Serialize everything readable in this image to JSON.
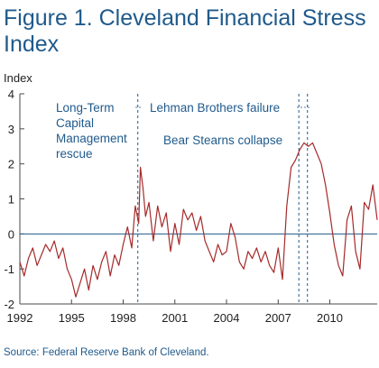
{
  "figure": {
    "title": "Figure 1. Cleveland Financial Stress Index",
    "source": "Source: Federal Reserve Bank of Cleveland."
  },
  "colors": {
    "title": "#1f5a8c",
    "series": "#a52a2a",
    "annotation": "#1f5a8c",
    "zero_line": "#1f5a8c",
    "axis": "#4a4a4a"
  },
  "chart_data": {
    "type": "line",
    "title": "Figure 1. Cleveland Financial Stress Index",
    "ylabel": "Index",
    "xlabel": "",
    "xlim": [
      1992,
      2012.75
    ],
    "ylim": [
      -2,
      4
    ],
    "xticks": [
      1992,
      1995,
      1998,
      2001,
      2004,
      2007,
      2010
    ],
    "yticks": [
      -2,
      -1,
      0,
      1,
      2,
      3,
      4
    ],
    "grid": false,
    "series": [
      {
        "name": "",
        "x": [
          1992.0,
          1992.25,
          1992.5,
          1992.75,
          1993.0,
          1993.25,
          1993.5,
          1993.75,
          1994.0,
          1994.25,
          1994.5,
          1994.75,
          1995.0,
          1995.25,
          1995.5,
          1995.75,
          1996.0,
          1996.25,
          1996.5,
          1996.75,
          1997.0,
          1997.25,
          1997.5,
          1997.75,
          1998.0,
          1998.25,
          1998.5,
          1998.7,
          1998.9,
          1999.0,
          1999.15,
          1999.3,
          1999.5,
          1999.75,
          2000.0,
          2000.25,
          2000.5,
          2000.75,
          2001.0,
          2001.25,
          2001.5,
          2001.75,
          2002.0,
          2002.25,
          2002.5,
          2002.75,
          2003.0,
          2003.25,
          2003.5,
          2003.75,
          2004.0,
          2004.25,
          2004.5,
          2004.75,
          2005.0,
          2005.25,
          2005.5,
          2005.75,
          2006.0,
          2006.25,
          2006.5,
          2006.75,
          2007.0,
          2007.25,
          2007.5,
          2007.75,
          2008.0,
          2008.25,
          2008.5,
          2008.75,
          2009.0,
          2009.25,
          2009.5,
          2009.75,
          2010.0,
          2010.25,
          2010.5,
          2010.75,
          2011.0,
          2011.25,
          2011.5,
          2011.75,
          2012.0,
          2012.25,
          2012.5,
          2012.75
        ],
        "values": [
          -0.8,
          -1.2,
          -0.7,
          -0.4,
          -0.9,
          -0.6,
          -0.3,
          -0.5,
          -0.2,
          -0.7,
          -0.4,
          -1.0,
          -1.3,
          -1.8,
          -1.4,
          -1.0,
          -1.6,
          -0.9,
          -1.3,
          -0.8,
          -0.5,
          -1.2,
          -0.6,
          -0.9,
          -0.3,
          0.2,
          -0.4,
          0.8,
          0.3,
          1.9,
          1.3,
          0.5,
          0.9,
          -0.2,
          0.8,
          0.2,
          0.6,
          -0.5,
          0.3,
          -0.3,
          0.7,
          0.4,
          0.6,
          0.1,
          0.5,
          -0.2,
          -0.5,
          -0.8,
          -0.3,
          -0.6,
          -0.5,
          0.3,
          -0.1,
          -0.8,
          -1.0,
          -0.5,
          -0.7,
          -0.4,
          -0.8,
          -0.5,
          -0.9,
          -1.1,
          -0.4,
          -1.3,
          0.8,
          1.9,
          2.1,
          2.4,
          2.6,
          2.5,
          2.6,
          2.3,
          2.0,
          1.4,
          0.6,
          -0.3,
          -0.9,
          -1.2,
          0.4,
          0.8,
          -0.5,
          -1.0,
          0.9,
          0.7,
          1.4,
          0.4
        ]
      }
    ],
    "reference_lines": [
      {
        "x": 1998.85,
        "label": [
          "Long-Term",
          "Capital",
          "Management",
          "rescue"
        ]
      },
      {
        "x": 2008.2,
        "label": [
          "Bear Stearns collapse"
        ]
      },
      {
        "x": 2008.7,
        "label": [
          "Lehman Brothers failure"
        ]
      }
    ]
  }
}
